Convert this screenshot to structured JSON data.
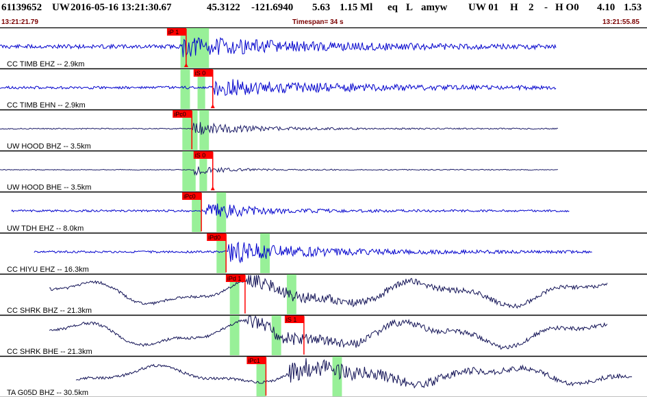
{
  "header": {
    "event_id": "61139652",
    "network": "UW",
    "origin_time": "2016-05-16 13:21:30.67",
    "lat": "45.3122",
    "lon": "-121.6940",
    "depth": "5.63",
    "magnitude": "1.15 Ml",
    "event_type": "eq",
    "flag": "L",
    "author": "amyw",
    "sol_net": "UW 01",
    "gt": "H",
    "nph": "2",
    "dash": "-",
    "quality": "H O0",
    "rms": "4.10",
    "erh": "1.53"
  },
  "subheader": {
    "start_time": "13:21:21.79",
    "timespan_label": "Timespan=  34 s",
    "end_time": "13:21:55.85"
  },
  "colors": {
    "trace_blue": "#0000cc",
    "trace_navy": "#111155",
    "pick_red": "#ff0000",
    "window_green": "#98f098",
    "subheader_text": "#7a0000"
  },
  "traces": [
    {
      "label": "CC TIMB EHZ -- 2.9km",
      "color": "#0000cc",
      "style": "hf",
      "amp": 11,
      "noise": 3,
      "start_s": 0.0,
      "end_s": 29.3,
      "onset_s": 9.6,
      "coda_s": 14,
      "lf_amp": 0,
      "seed": 11,
      "green_s": [
        9.5,
        11.0
      ],
      "picks": [
        {
          "label": "iP 1",
          "time_s": 9.8,
          "marker": "bottom"
        }
      ]
    },
    {
      "label": "CC TIMB EHN -- 2.9km",
      "color": "#0000cc",
      "style": "hf",
      "amp": 10,
      "noise": 2,
      "start_s": 0.0,
      "end_s": 29.3,
      "onset_s": 11.3,
      "coda_s": 14,
      "lf_amp": 0,
      "seed": 23,
      "green_s": [
        10.4,
        10.8
      ],
      "picks": [
        {
          "label": "iS 0",
          "time_s": 11.2,
          "marker": "bottom"
        }
      ]
    },
    {
      "label": "UW HOOD BHZ -- 3.5km",
      "color": "#1a1a66",
      "style": "hf",
      "amp": 9,
      "noise": 0.8,
      "start_s": 0.0,
      "end_s": 29.4,
      "onset_s": 10.1,
      "coda_s": 6,
      "lf_amp": 0,
      "seed": 37,
      "green_s": [
        9.6,
        10.4
      ],
      "picks": [
        {
          "label": "iPc0",
          "time_s": 10.1,
          "marker": "none"
        }
      ]
    },
    {
      "label": "UW HOOD BHE -- 3.5km",
      "color": "#1a1a66",
      "style": "hf",
      "amp": 6,
      "noise": 0.6,
      "start_s": 0.0,
      "end_s": 29.4,
      "onset_s": 10.2,
      "coda_s": 4,
      "lf_amp": 0,
      "seed": 41,
      "green_s": [
        9.6,
        10.3
      ],
      "picks": [
        {
          "label": "iS 0",
          "time_s": 11.2,
          "marker": "bottom"
        }
      ]
    },
    {
      "label": "UW TDH EHZ -- 8.0km",
      "color": "#0000cc",
      "style": "hf",
      "amp": 12,
      "noise": 1.5,
      "start_s": 0.6,
      "end_s": 30.0,
      "onset_s": 10.8,
      "coda_s": 5,
      "lf_amp": 0,
      "seed": 53,
      "green_s": [
        10.1,
        10.6
      ],
      "picks": [
        {
          "label": "iPc0",
          "time_s": 10.6,
          "marker": "none"
        }
      ]
    },
    {
      "label": "CC HIYU EHZ -- 16.3km",
      "color": "#0000cc",
      "style": "hf",
      "amp": 13,
      "noise": 1.5,
      "start_s": 1.8,
      "end_s": 31.2,
      "onset_s": 12.0,
      "coda_s": 10,
      "lf_amp": 0,
      "seed": 67,
      "green_s": [
        11.4,
        11.9
      ],
      "picks": [
        {
          "label": "iPd0",
          "time_s": 11.9,
          "marker": "none"
        }
      ]
    },
    {
      "label": "CC SHRK BHZ -- 21.3km",
      "color": "#111155",
      "style": "lf",
      "amp": 9,
      "noise": 2,
      "start_s": 2.6,
      "end_s": 32.0,
      "onset_s": 13.0,
      "coda_s": 14,
      "lf_amp": 14,
      "seed": 71,
      "green_s": [
        12.1,
        12.6
      ],
      "picks": [
        {
          "label": "iPd 1",
          "time_s": 12.9,
          "marker": "none"
        }
      ]
    },
    {
      "label": "CC SHRK BHE -- 21.3km",
      "color": "#111155",
      "style": "lf",
      "amp": 9,
      "noise": 2,
      "start_s": 2.6,
      "end_s": 32.0,
      "onset_s": 13.0,
      "coda_s": 14,
      "lf_amp": 14,
      "seed": 83,
      "green_s": [
        12.1,
        12.6
      ],
      "picks": [
        {
          "label": "iS 1",
          "time_s": 16.0,
          "marker": "none"
        }
      ]
    },
    {
      "label": "TA G05D BHZ -- 30.5km",
      "color": "#111155",
      "style": "lf",
      "amp": 12,
      "noise": 2,
      "start_s": 4.0,
      "end_s": 33.3,
      "onset_s": 15.2,
      "coda_s": 14,
      "lf_amp": 10,
      "seed": 97,
      "green_s": [
        13.5,
        14.0
      ],
      "picks": [
        {
          "label": "iPc1",
          "time_s": 14.0,
          "marker": "none"
        }
      ]
    }
  ],
  "extra_green_windows": [
    {
      "trace": 0,
      "time_s": [
        10.4,
        10.8
      ]
    },
    {
      "trace": 1,
      "time_s": [
        9.5,
        10.0
      ]
    },
    {
      "trace": 2,
      "time_s": [
        10.5,
        11.0
      ]
    },
    {
      "trace": 3,
      "time_s": [
        10.5,
        10.9
      ]
    },
    {
      "trace": 4,
      "time_s": [
        11.4,
        11.9
      ]
    },
    {
      "trace": 5,
      "time_s": [
        13.7,
        14.2
      ]
    },
    {
      "trace": 6,
      "time_s": [
        15.1,
        15.6
      ]
    },
    {
      "trace": 7,
      "time_s": [
        14.3,
        14.8
      ]
    },
    {
      "trace": 8,
      "time_s": [
        17.5,
        18.0
      ]
    }
  ]
}
